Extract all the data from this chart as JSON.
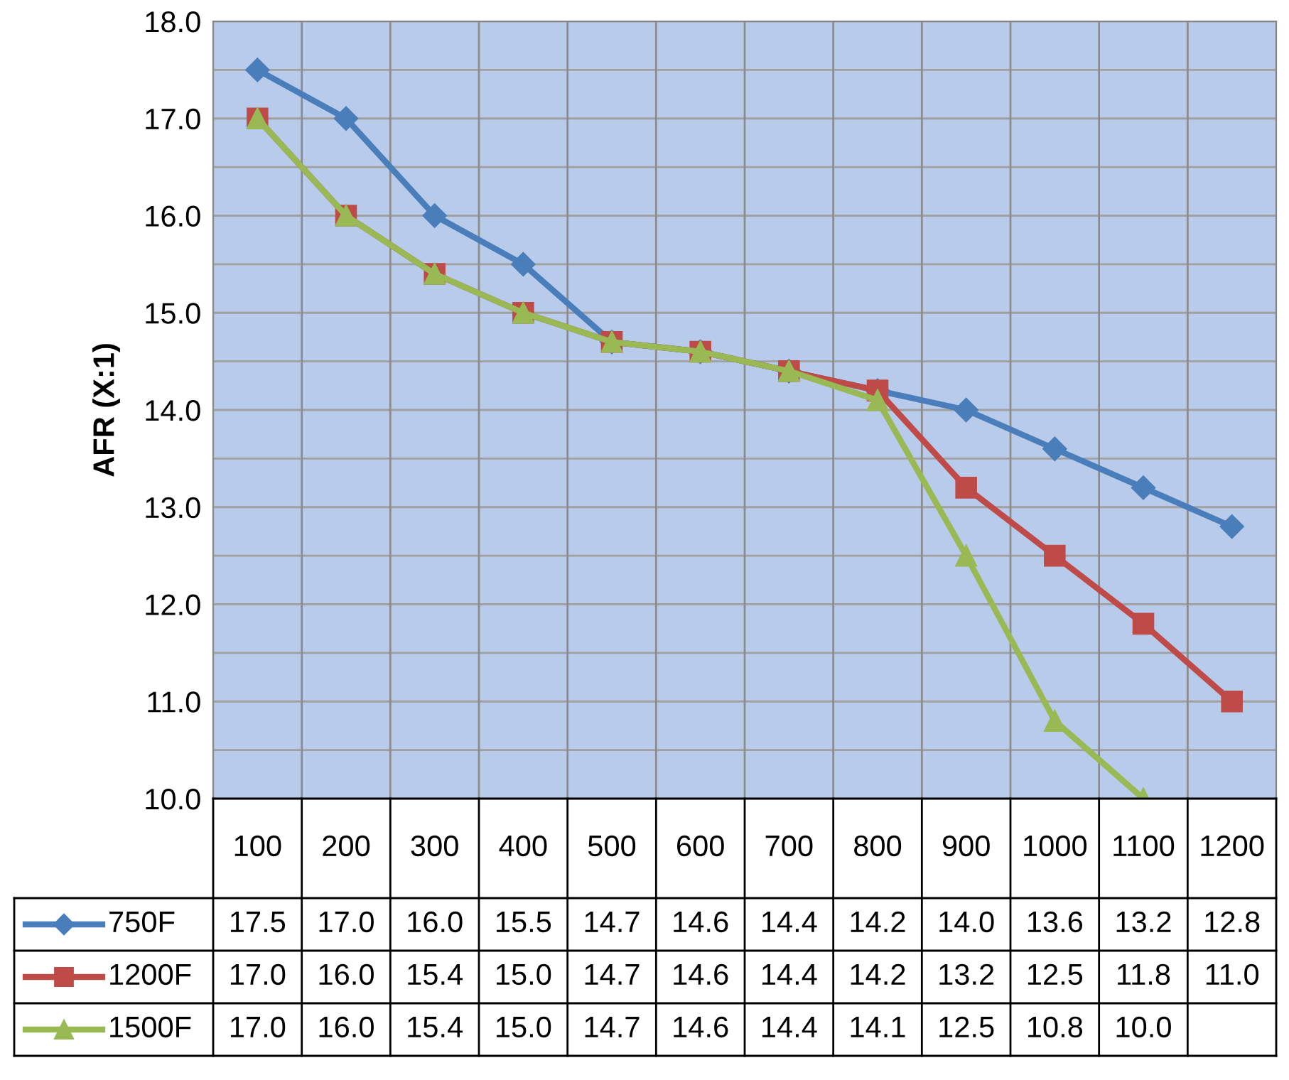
{
  "chart_data": {
    "type": "line",
    "ylabel": "AFR (X:1)",
    "categories": [
      "100",
      "200",
      "300",
      "400",
      "500",
      "600",
      "700",
      "800",
      "900",
      "1000",
      "1100",
      "1200"
    ],
    "series": [
      {
        "name": "750F",
        "color": "#4a7ebb",
        "marker": "diamond",
        "values": [
          17.5,
          17.0,
          16.0,
          15.5,
          14.7,
          14.6,
          14.4,
          14.2,
          14.0,
          13.6,
          13.2,
          12.8
        ],
        "value_labels": [
          "17.5",
          "17.0",
          "16.0",
          "15.5",
          "14.7",
          "14.6",
          "14.4",
          "14.2",
          "14.0",
          "13.6",
          "13.2",
          "12.8"
        ]
      },
      {
        "name": "1200F",
        "color": "#be4b48",
        "marker": "square",
        "values": [
          17.0,
          16.0,
          15.4,
          15.0,
          14.7,
          14.6,
          14.4,
          14.2,
          13.2,
          12.5,
          11.8,
          11.0
        ],
        "value_labels": [
          "17.0",
          "16.0",
          "15.4",
          "15.0",
          "14.7",
          "14.6",
          "14.4",
          "14.2",
          "13.2",
          "12.5",
          "11.8",
          "11.0"
        ]
      },
      {
        "name": "1500F",
        "color": "#98b954",
        "marker": "triangle",
        "values": [
          17.0,
          16.0,
          15.4,
          15.0,
          14.7,
          14.6,
          14.4,
          14.1,
          12.5,
          10.8,
          10.0,
          null
        ],
        "value_labels": [
          "17.0",
          "16.0",
          "15.4",
          "15.0",
          "14.7",
          "14.6",
          "14.4",
          "14.1",
          "12.5",
          "10.8",
          "10.0",
          null
        ]
      }
    ],
    "ylim": [
      10.0,
      18.0
    ],
    "yticks": [
      {
        "value": 10.0,
        "label": "10.0"
      },
      {
        "value": 10.5,
        "label": null
      },
      {
        "value": 11.0,
        "label": "11.0"
      },
      {
        "value": 11.5,
        "label": null
      },
      {
        "value": 12.0,
        "label": "12.0"
      },
      {
        "value": 12.5,
        "label": null
      },
      {
        "value": 13.0,
        "label": "13.0"
      },
      {
        "value": 13.5,
        "label": null
      },
      {
        "value": 14.0,
        "label": "14.0"
      },
      {
        "value": 14.5,
        "label": null
      },
      {
        "value": 15.0,
        "label": "15.0"
      },
      {
        "value": 15.5,
        "label": null
      },
      {
        "value": 16.0,
        "label": "16.0"
      },
      {
        "value": 16.5,
        "label": null
      },
      {
        "value": 17.0,
        "label": "17.0"
      },
      {
        "value": 17.5,
        "label": null
      },
      {
        "value": 18.0,
        "label": "18.0"
      }
    ],
    "grid": true,
    "legend": "bottom"
  }
}
